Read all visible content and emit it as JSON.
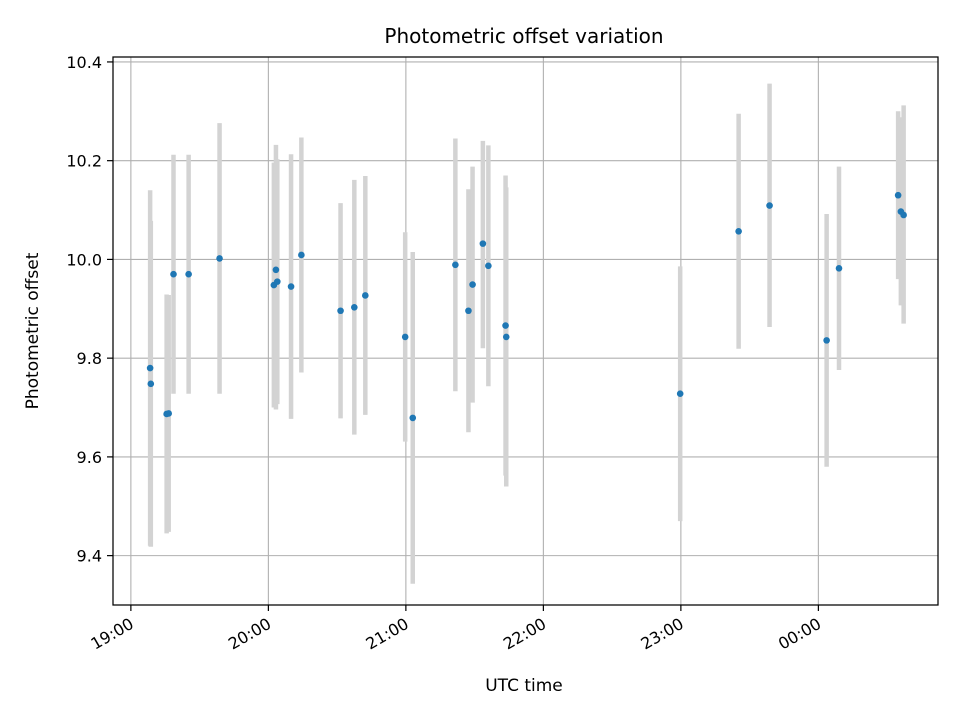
{
  "chart_data": {
    "type": "scatter",
    "title": "Photometric offset variation",
    "xlabel": "UTC time",
    "ylabel": "Photometric offset",
    "x_unit": "hours since 19:00 UTC",
    "xlim": [
      -0.13,
      5.87
    ],
    "ylim": [
      9.3,
      10.41
    ],
    "x_ticks": [
      {
        "value": 0,
        "label": "19:00"
      },
      {
        "value": 1,
        "label": "20:00"
      },
      {
        "value": 2,
        "label": "21:00"
      },
      {
        "value": 3,
        "label": "22:00"
      },
      {
        "value": 4,
        "label": "23:00"
      },
      {
        "value": 5,
        "label": "00:00"
      }
    ],
    "y_ticks": [
      {
        "value": 9.4,
        "label": "9.4"
      },
      {
        "value": 9.6,
        "label": "9.6"
      },
      {
        "value": 9.8,
        "label": "9.8"
      },
      {
        "value": 10.0,
        "label": "10.0"
      },
      {
        "value": 10.2,
        "label": "10.2"
      },
      {
        "value": 10.4,
        "label": "10.4"
      }
    ],
    "grid": true,
    "colors": {
      "point": "#1f77b4",
      "errorbar": "#d3d3d3",
      "grid": "#b0b0b0",
      "axes": "#000000"
    },
    "series": [
      {
        "name": "Photometric offset",
        "points": [
          {
            "x": 0.14,
            "y": 9.78,
            "ylo": 9.42,
            "yhi": 10.14
          },
          {
            "x": 0.145,
            "y": 9.748,
            "ylo": 9.418,
            "yhi": 10.078
          },
          {
            "x": 0.26,
            "y": 9.687,
            "ylo": 9.445,
            "yhi": 9.929
          },
          {
            "x": 0.275,
            "y": 9.688,
            "ylo": 9.448,
            "yhi": 9.928
          },
          {
            "x": 0.31,
            "y": 9.97,
            "ylo": 9.728,
            "yhi": 10.212
          },
          {
            "x": 0.42,
            "y": 9.97,
            "ylo": 9.728,
            "yhi": 10.212
          },
          {
            "x": 0.645,
            "y": 10.002,
            "ylo": 9.728,
            "yhi": 10.276
          },
          {
            "x": 1.04,
            "y": 9.948,
            "ylo": 9.7,
            "yhi": 10.196
          },
          {
            "x": 1.055,
            "y": 9.979,
            "ylo": 9.696,
            "yhi": 10.232
          },
          {
            "x": 1.065,
            "y": 9.955,
            "ylo": 9.707,
            "yhi": 10.203
          },
          {
            "x": 1.165,
            "y": 9.945,
            "ylo": 9.677,
            "yhi": 10.213
          },
          {
            "x": 1.24,
            "y": 10.009,
            "ylo": 9.771,
            "yhi": 10.247
          },
          {
            "x": 1.525,
            "y": 9.896,
            "ylo": 9.678,
            "yhi": 10.114
          },
          {
            "x": 1.625,
            "y": 9.903,
            "ylo": 9.645,
            "yhi": 10.161
          },
          {
            "x": 1.705,
            "y": 9.927,
            "ylo": 9.685,
            "yhi": 10.169
          },
          {
            "x": 1.995,
            "y": 9.843,
            "ylo": 9.631,
            "yhi": 10.055
          },
          {
            "x": 2.05,
            "y": 9.679,
            "ylo": 9.343,
            "yhi": 10.015
          },
          {
            "x": 2.36,
            "y": 9.989,
            "ylo": 9.733,
            "yhi": 10.245
          },
          {
            "x": 2.455,
            "y": 9.896,
            "ylo": 9.65,
            "yhi": 10.142
          },
          {
            "x": 2.485,
            "y": 9.949,
            "ylo": 9.71,
            "yhi": 10.188
          },
          {
            "x": 2.56,
            "y": 10.032,
            "ylo": 9.82,
            "yhi": 10.24
          },
          {
            "x": 2.6,
            "y": 9.987,
            "ylo": 9.743,
            "yhi": 10.231
          },
          {
            "x": 2.725,
            "y": 9.866,
            "ylo": 9.562,
            "yhi": 10.17
          },
          {
            "x": 2.73,
            "y": 9.843,
            "ylo": 9.54,
            "yhi": 10.146
          },
          {
            "x": 3.995,
            "y": 9.728,
            "ylo": 9.47,
            "yhi": 9.986
          },
          {
            "x": 4.42,
            "y": 10.057,
            "ylo": 9.819,
            "yhi": 10.295
          },
          {
            "x": 4.645,
            "y": 10.109,
            "ylo": 9.863,
            "yhi": 10.356
          },
          {
            "x": 5.06,
            "y": 9.836,
            "ylo": 9.58,
            "yhi": 10.092
          },
          {
            "x": 5.15,
            "y": 9.982,
            "ylo": 9.776,
            "yhi": 10.188
          },
          {
            "x": 5.58,
            "y": 10.13,
            "ylo": 9.96,
            "yhi": 10.3
          },
          {
            "x": 5.6,
            "y": 10.097,
            "ylo": 9.907,
            "yhi": 10.288
          },
          {
            "x": 5.62,
            "y": 10.09,
            "ylo": 9.87,
            "yhi": 10.312
          }
        ]
      }
    ]
  }
}
